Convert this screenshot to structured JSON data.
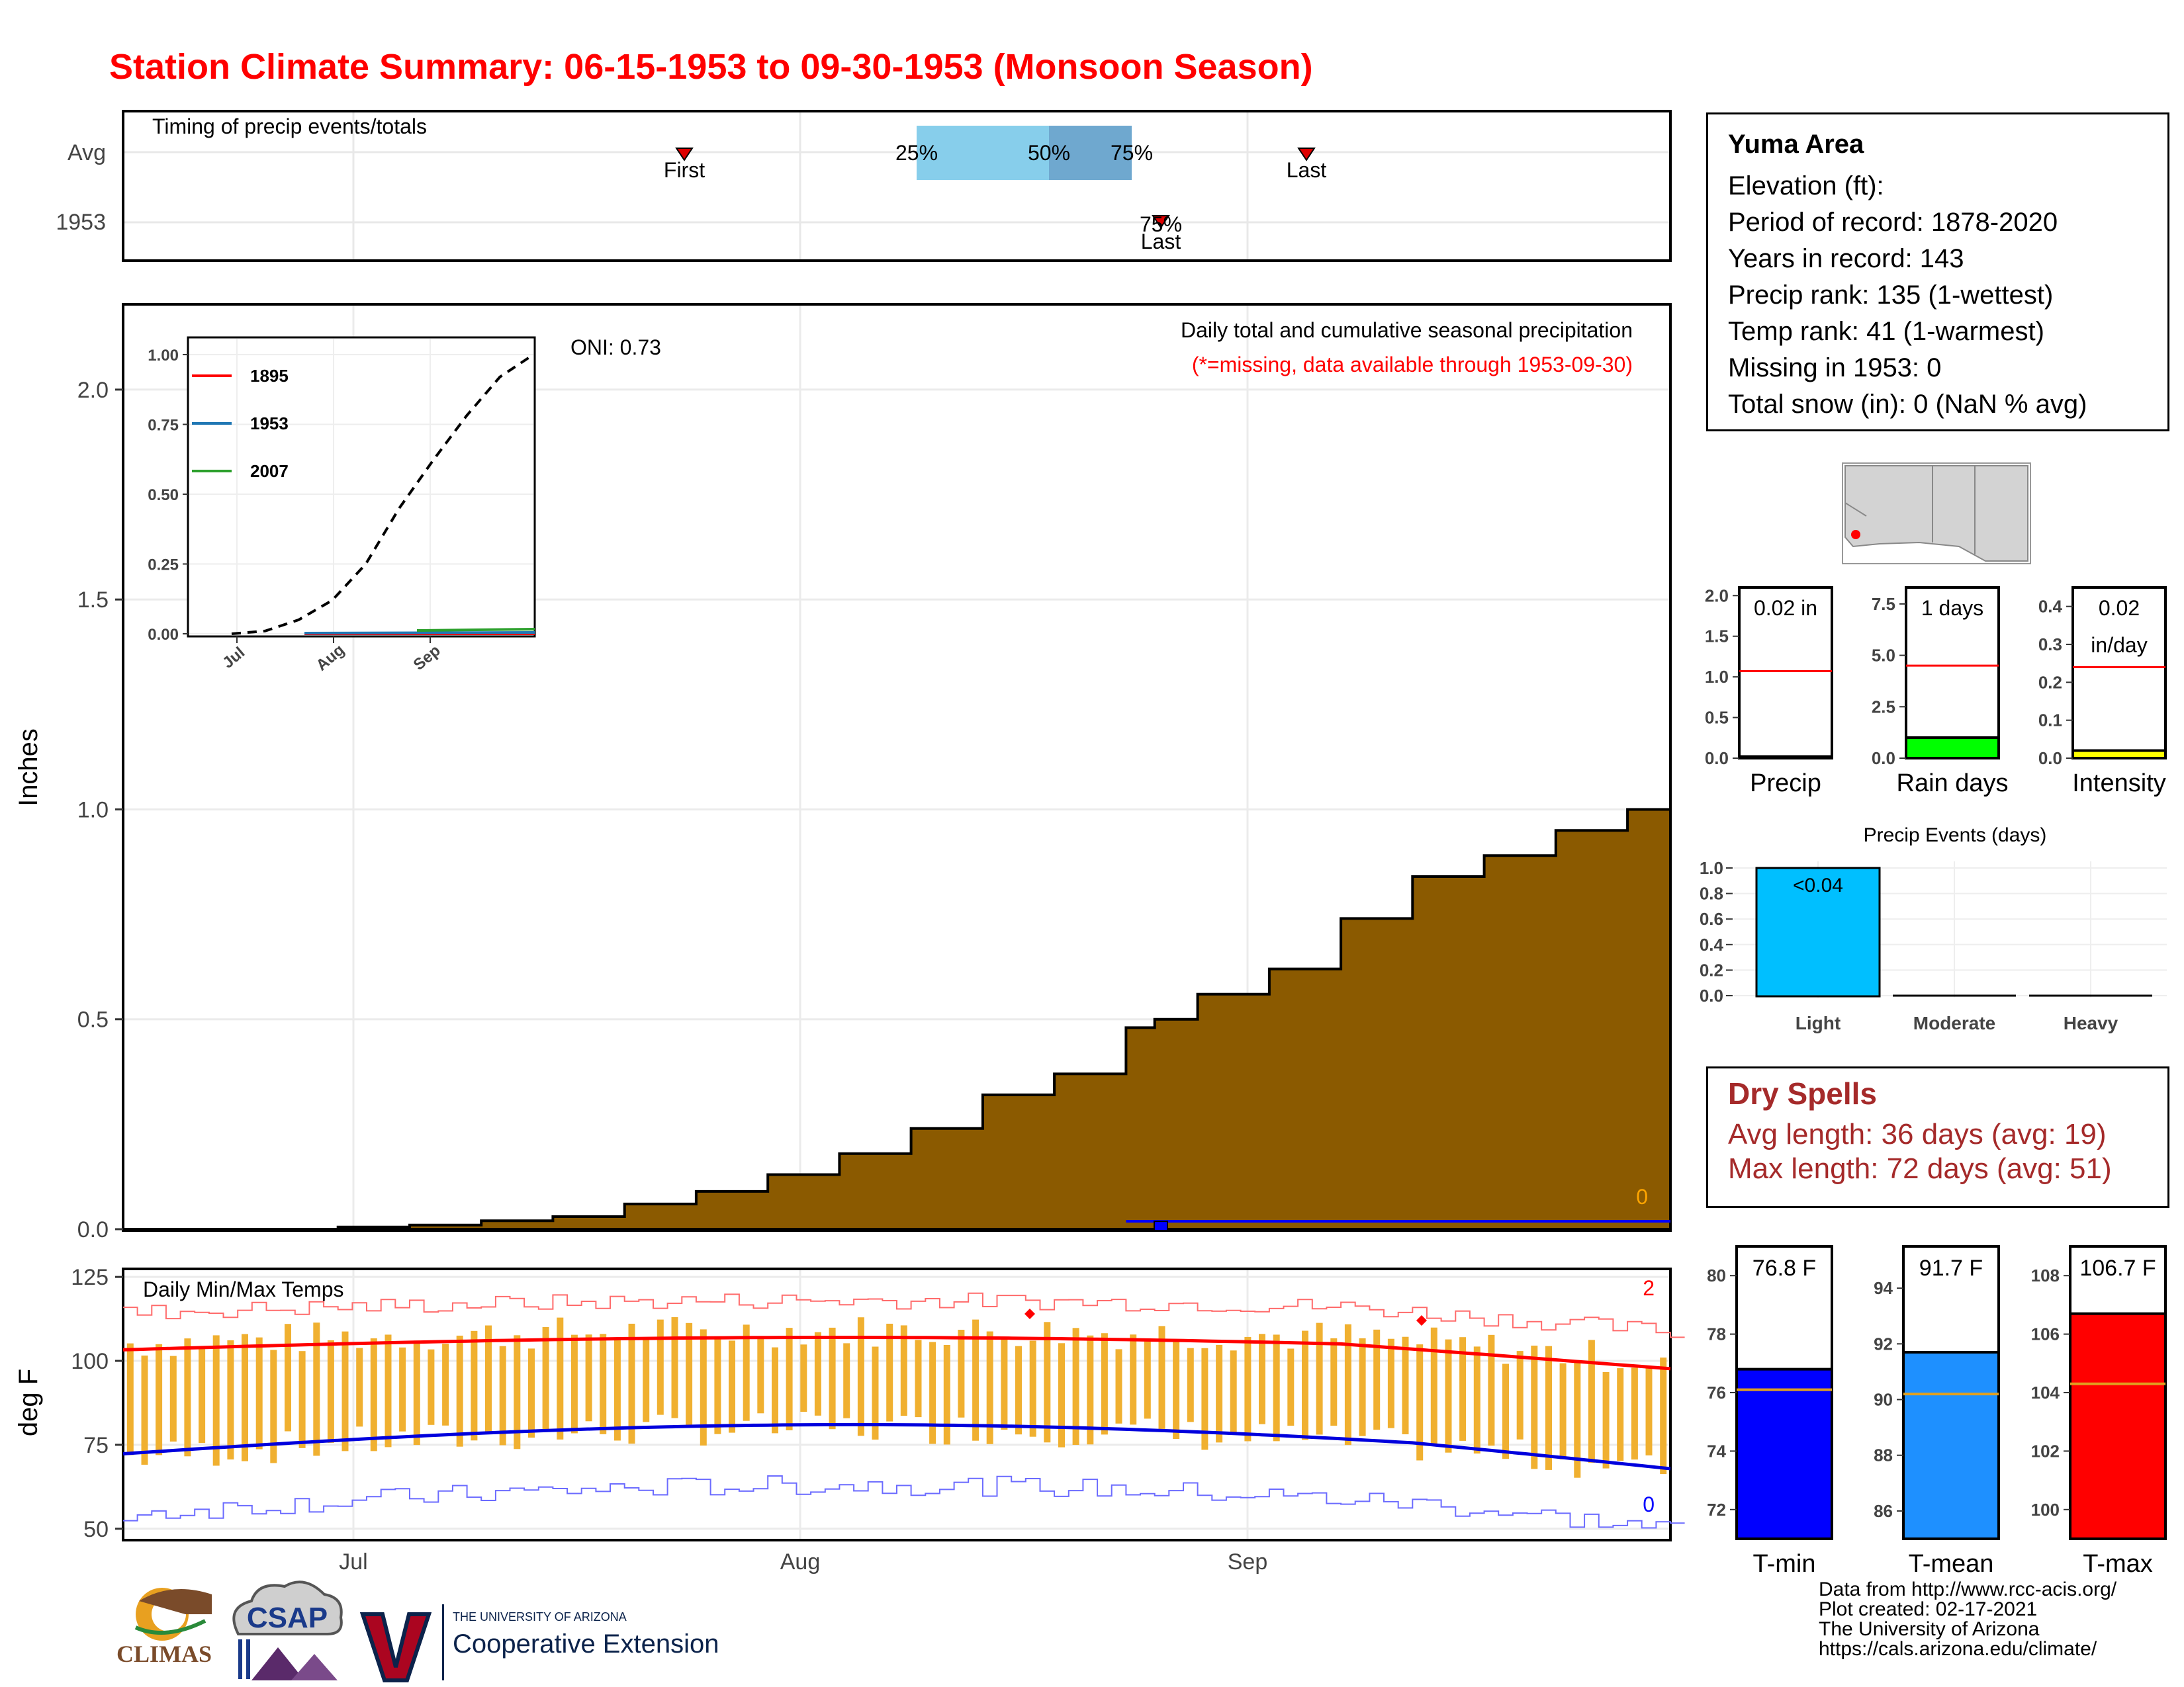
{
  "title": "Station Climate Summary: 06-15-1953 to 09-30-1953 (Monsoon Season)",
  "timing": {
    "label": "Timing of precip events/totals",
    "rows": [
      "Avg",
      "1953"
    ],
    "avg_first": "First",
    "avg_last": "Last",
    "pct25": "25%",
    "pct50": "50%",
    "pct75": "75%",
    "y1953_labels_top": "75%",
    "y1953_labels_bottom": "Last"
  },
  "main_plot": {
    "ylabel": "Inches",
    "oni": "ONI: 0.73",
    "caption": "Daily total and cumulative seasonal precipitation",
    "missing_note": "(*=missing, data available through 1953-09-30)",
    "missing_count": "0"
  },
  "inset": {
    "legend": [
      "1895",
      "1953",
      "2007"
    ]
  },
  "temps": {
    "label": "Daily Min/Max Temps",
    "ylabel": "deg F",
    "max_count": "2",
    "min_count": "0"
  },
  "station": {
    "name": "Yuma Area",
    "lines": [
      "Elevation (ft):",
      "Period of record: 1878-2020",
      "Years in record: 143",
      "Precip rank: 135 (1-wettest)",
      "Temp rank: 41 (1-warmest)",
      "Missing in 1953: 0",
      "Total snow (in): 0 (NaN % avg)"
    ]
  },
  "gauges": {
    "precip": {
      "label": "Precip",
      "value_text": "0.02 in",
      "value": 0.02,
      "avg": 1.07,
      "ylim": [
        0,
        2.1
      ],
      "ticks": [
        0.0,
        0.5,
        1.0,
        1.5,
        2.0
      ],
      "tick_labels": [
        "0.0",
        "0.5",
        "1.0",
        "1.5",
        "2.0"
      ],
      "fill": "#ffffff"
    },
    "raindays": {
      "label": "Rain days",
      "value_text": "1 days",
      "value": 1,
      "avg": 4.5,
      "ylim": [
        0,
        8.3
      ],
      "ticks": [
        0.0,
        2.5,
        5.0,
        7.5
      ],
      "tick_labels": [
        "0.0",
        "2.5",
        "5.0",
        "7.5"
      ],
      "fill": "#00ff00"
    },
    "intensity": {
      "label": "Intensity",
      "value_text": "0.02",
      "value_text2": "in/day",
      "value": 0.02,
      "avg": 0.24,
      "ylim": [
        0,
        0.45
      ],
      "ticks": [
        0.0,
        0.1,
        0.2,
        0.3,
        0.4
      ],
      "tick_labels": [
        "0.0",
        "0.1",
        "0.2",
        "0.3",
        "0.4"
      ],
      "fill": "#ffff00"
    }
  },
  "events": {
    "title": "Precip Events (days)",
    "categories": [
      "Light",
      "Moderate",
      "Heavy"
    ],
    "values": [
      1,
      0,
      0
    ],
    "top_label": "<0.04",
    "ticks": [
      "0.0",
      "0.2",
      "0.4",
      "0.6",
      "0.8",
      "1.0"
    ]
  },
  "dry_spells": {
    "title": "Dry Spells",
    "avg_line": "Avg length: 36 days (avg: 19)",
    "max_line": "Max length: 72 days (avg: 51)"
  },
  "temp_gauges": {
    "tmin": {
      "label": "T-min",
      "value_text": "76.8 F",
      "value": 76.8,
      "avg": 76.1,
      "ylim": [
        71,
        81
      ],
      "ticks": [
        72,
        74,
        76,
        78,
        80
      ],
      "fill": "#0000ff"
    },
    "tmean": {
      "label": "T-mean",
      "value_text": "91.7 F",
      "value": 91.7,
      "avg": 90.2,
      "ylim": [
        85,
        95.5
      ],
      "ticks": [
        86,
        88,
        90,
        92,
        94
      ],
      "fill": "#1e90ff"
    },
    "tmax": {
      "label": "T-max",
      "value_text": "106.7 F",
      "value": 106.7,
      "avg": 104.3,
      "ylim": [
        99,
        109
      ],
      "ticks": [
        100,
        102,
        104,
        106,
        108
      ],
      "fill": "#ff0000"
    }
  },
  "credits": [
    "Data from http://www.rcc-acis.org/",
    "Plot created: 02-17-2021",
    "The University of Arizona",
    "https://cals.arizona.edu/climate/"
  ],
  "logos": {
    "climas": "CLIMAS",
    "csap": "CSAP",
    "ua_small": "THE UNIVERSITY OF ARIZONA",
    "ua_big": "Cooperative Extension"
  },
  "chart_data": [
    {
      "type": "area",
      "name": "cumulative-precip",
      "x_ticks": [
        "Jul",
        "Aug",
        "Sep"
      ],
      "ylim": [
        0,
        2.2
      ],
      "y_ticks": [
        "0.0",
        "0.5",
        "1.0",
        "1.5",
        "2.0"
      ],
      "ylabel": "Inches",
      "x_days": [
        0,
        5,
        10,
        15,
        20,
        25,
        30,
        35,
        40,
        45,
        50,
        55,
        60,
        65,
        70,
        72,
        75,
        80,
        85,
        90,
        95,
        100,
        105,
        108
      ],
      "cumulative_avg": [
        0.0,
        0.0,
        0.0,
        0.005,
        0.01,
        0.02,
        0.03,
        0.06,
        0.09,
        0.13,
        0.18,
        0.24,
        0.32,
        0.37,
        0.48,
        0.5,
        0.56,
        0.62,
        0.74,
        0.84,
        0.89,
        0.95,
        1.0,
        1.06
      ],
      "cumulative_1953": [
        0.0,
        0.0,
        0.0,
        0.0,
        0.0,
        0.0,
        0.0,
        0.0,
        0.0,
        0.0,
        0.0,
        0.0,
        0.0,
        0.0,
        0.0,
        0.02,
        0.02,
        0.02,
        0.02,
        0.02,
        0.02,
        0.02,
        0.02,
        0.02
      ]
    },
    {
      "type": "line",
      "name": "inset-cumulative",
      "x_ticks": [
        "Jul",
        "Aug",
        "Sep"
      ],
      "y_ticks": [
        "0.00",
        "0.25",
        "0.50",
        "0.75",
        "1.00"
      ],
      "series": [
        {
          "name": "1895",
          "values": [
            0,
            0,
            0.01,
            0.01
          ]
        },
        {
          "name": "1953",
          "values": [
            0,
            0,
            0.02,
            0.02
          ]
        },
        {
          "name": "2007",
          "values": [
            0,
            0,
            0.02,
            0.03
          ]
        }
      ],
      "average_curve": [
        0,
        0.01,
        0.05,
        0.12,
        0.25,
        0.45,
        0.62,
        0.78,
        0.92,
        1.0
      ]
    },
    {
      "type": "bar",
      "name": "daily-temps",
      "ylim": [
        47,
        127
      ],
      "y_ticks": [
        "50",
        "75",
        "100",
        "125"
      ],
      "x_ticks": [
        "Jul",
        "Aug",
        "Sep"
      ],
      "note": "daily min/max bars with climatological avg lines"
    }
  ]
}
